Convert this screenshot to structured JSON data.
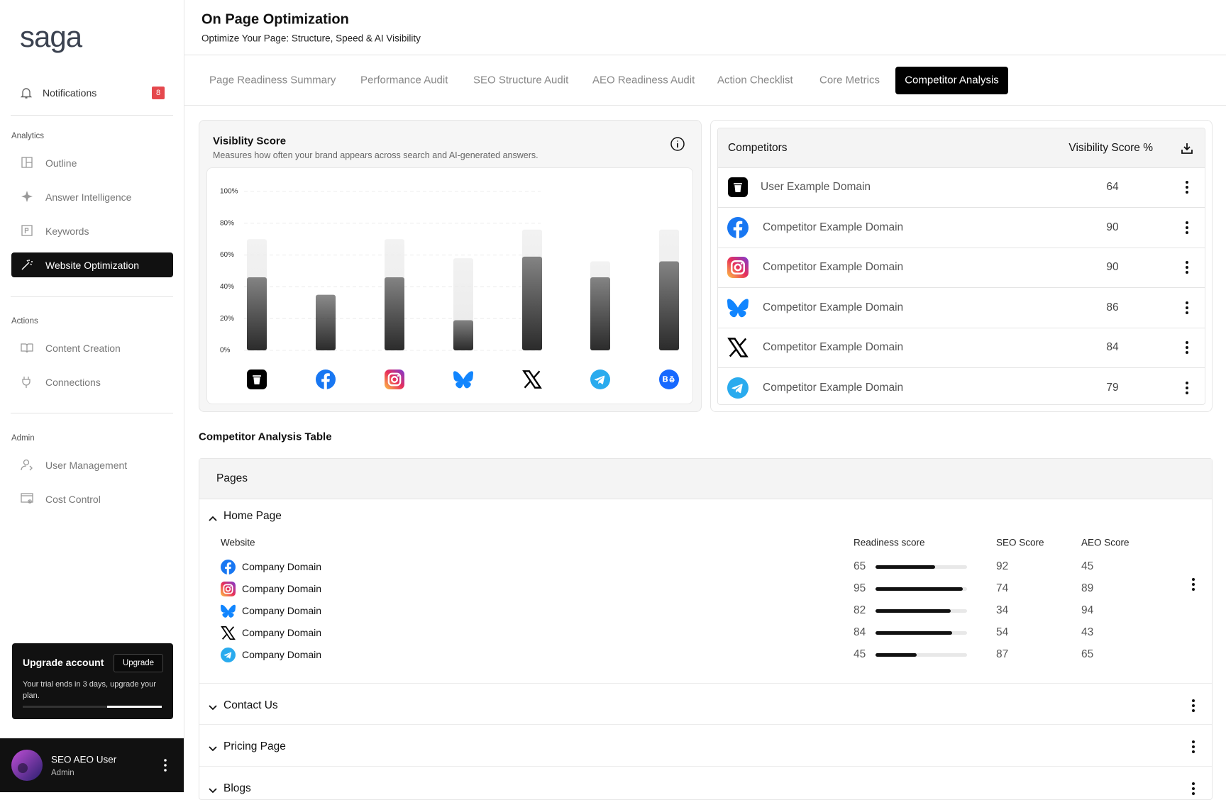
{
  "sidebar": {
    "logo": "saga",
    "notifications": {
      "label": "Notifications",
      "count": 8
    },
    "sections": [
      {
        "title": "Analytics",
        "items": [
          "Outline",
          "Answer Intelligence",
          "Keywords",
          "Website Optimization"
        ]
      },
      {
        "title": "Actions",
        "items": [
          "Content Creation",
          "Connections"
        ]
      },
      {
        "title": "Admin",
        "items": [
          "User Management",
          "Cost Control"
        ]
      }
    ],
    "upgrade": {
      "title": "Upgrade account",
      "button": "Upgrade",
      "text": "Your trial ends in 3 days, upgrade your plan."
    },
    "user": {
      "name": "SEO AEO User",
      "role": "Admin"
    }
  },
  "header": {
    "title": "On Page Optimization",
    "subtitle": "Optimize Your Page: Structure, Speed & AI Visibility"
  },
  "tabs": [
    "Page Readiness Summary",
    "Performance Audit",
    "SEO Structure Audit",
    "AEO Readiness Audit",
    "Action Checklist",
    "Core Metrics",
    "Competitor Analysis"
  ],
  "chart_data": {
    "type": "bar",
    "title": "Visiblity Score",
    "subtitle": "Measures how often your brand appears across search and AI-generated answers.",
    "categories": [
      null,
      null,
      null,
      null,
      null,
      null,
      null
    ],
    "series": [
      {
        "color": "#e9e9e9",
        "values": [
          70,
          null,
          70,
          58,
          76,
          56,
          76
        ]
      },
      {
        "color": "#2b2b2b",
        "values": [
          46,
          35,
          46,
          19,
          59,
          46,
          56
        ]
      }
    ],
    "ylim": [
      0,
      100
    ],
    "yticks": [
      {
        "value": 0,
        "label": "0%"
      },
      {
        "value": 20,
        "label": "20%"
      },
      {
        "value": 40,
        "label": "40%"
      },
      {
        "value": 60,
        "label": "60%"
      },
      {
        "value": 80,
        "label": "80%"
      },
      {
        "value": 100,
        "label": "100%"
      }
    ],
    "grid": true
  },
  "competitors": {
    "header": {
      "name": "Competitors",
      "score": "Visibility Score %"
    },
    "rows": [
      {
        "name": "User Example Domain",
        "score": 64
      },
      {
        "name": "Competitor Example Domain",
        "score": 90
      },
      {
        "name": "Competitor Example Domain",
        "score": 90
      },
      {
        "name": "Competitor Example Domain",
        "score": 86
      },
      {
        "name": "Competitor Example Domain",
        "score": 84
      },
      {
        "name": "Competitor Example Domain",
        "score": 79
      }
    ]
  },
  "analysis": {
    "title": "Competitor Analysis Table",
    "header": "Pages",
    "groups": [
      {
        "title": "Home Page",
        "columns": [
          "Website",
          "Readiness score",
          "SEO Score",
          "AEO Score"
        ],
        "rows": [
          {
            "website": "Company Domain",
            "readiness": 65,
            "seo": 92,
            "aeo": 45
          },
          {
            "website": "Company Domain",
            "readiness": 95,
            "seo": 74,
            "aeo": 89
          },
          {
            "website": "Company Domain",
            "readiness": 82,
            "seo": 34,
            "aeo": 94
          },
          {
            "website": "Company Domain",
            "readiness": 84,
            "seo": 54,
            "aeo": 43
          },
          {
            "website": "Company Domain",
            "readiness": 45,
            "seo": 87,
            "aeo": 65
          }
        ]
      },
      {
        "title": "Contact Us"
      },
      {
        "title": "Pricing Page"
      },
      {
        "title": "Blogs"
      }
    ]
  }
}
